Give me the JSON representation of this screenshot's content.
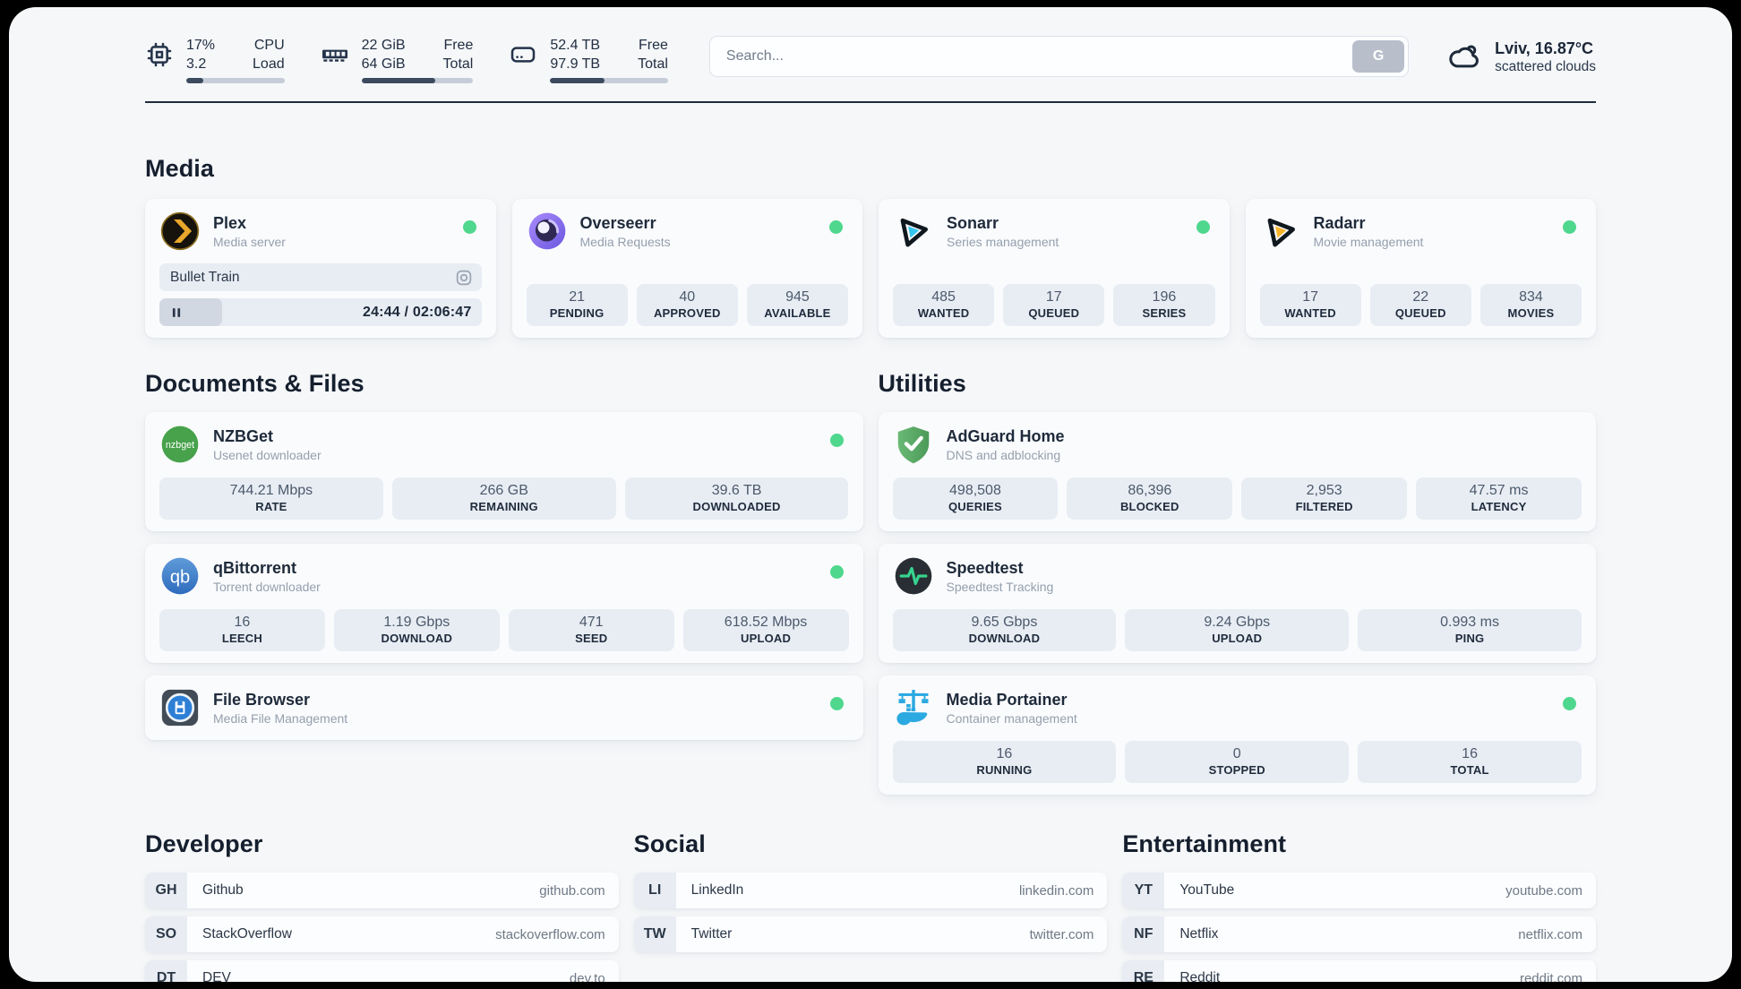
{
  "header": {
    "stats": [
      {
        "name": "cpu",
        "values": [
          "17%",
          "3.2"
        ],
        "labels": [
          "CPU",
          "Load"
        ],
        "progress": 17
      },
      {
        "name": "memory",
        "values": [
          "22 GiB",
          "64 GiB"
        ],
        "labels": [
          "Free",
          "Total"
        ],
        "progress": 66
      },
      {
        "name": "storage",
        "values": [
          "52.4 TB",
          "97.9 TB"
        ],
        "labels": [
          "Free",
          "Total"
        ],
        "progress": 46
      }
    ],
    "search": {
      "placeholder": "Search...",
      "button": "G"
    },
    "weather": {
      "title": "Lviv, 16.87°C",
      "subtitle": "scattered clouds"
    }
  },
  "sections": {
    "media": {
      "title": "Media",
      "cards": [
        {
          "app": "plex",
          "title": "Plex",
          "subtitle": "Media server",
          "online": true,
          "now_playing": "Bullet Train",
          "time_display": "24:44 / 02:06:47",
          "progress": 19.5
        },
        {
          "app": "overseerr",
          "title": "Overseerr",
          "subtitle": "Media Requests",
          "online": true,
          "stats": [
            {
              "value": "21",
              "label": "PENDING"
            },
            {
              "value": "40",
              "label": "APPROVED"
            },
            {
              "value": "945",
              "label": "AVAILABLE"
            }
          ]
        },
        {
          "app": "sonarr",
          "title": "Sonarr",
          "subtitle": "Series management",
          "online": true,
          "stats": [
            {
              "value": "485",
              "label": "WANTED"
            },
            {
              "value": "17",
              "label": "QUEUED"
            },
            {
              "value": "196",
              "label": "SERIES"
            }
          ]
        },
        {
          "app": "radarr",
          "title": "Radarr",
          "subtitle": "Movie management",
          "online": true,
          "stats": [
            {
              "value": "17",
              "label": "WANTED"
            },
            {
              "value": "22",
              "label": "QUEUED"
            },
            {
              "value": "834",
              "label": "MOVIES"
            }
          ]
        }
      ]
    },
    "documents": {
      "title": "Documents & Files",
      "cards": [
        {
          "app": "nzbget",
          "title": "NZBGet",
          "subtitle": "Usenet downloader",
          "online": true,
          "stats": [
            {
              "value": "744.21 Mbps",
              "label": "RATE"
            },
            {
              "value": "266 GB",
              "label": "REMAINING"
            },
            {
              "value": "39.6 TB",
              "label": "DOWNLOADED"
            }
          ]
        },
        {
          "app": "qbittorrent",
          "title": "qBittorrent",
          "subtitle": "Torrent downloader",
          "online": true,
          "stats": [
            {
              "value": "16",
              "label": "LEECH"
            },
            {
              "value": "1.19 Gbps",
              "label": "DOWNLOAD"
            },
            {
              "value": "471",
              "label": "SEED"
            },
            {
              "value": "618.52 Mbps",
              "label": "UPLOAD"
            }
          ]
        },
        {
          "app": "filebrowser",
          "title": "File Browser",
          "subtitle": "Media File Management",
          "online": true,
          "stats": []
        }
      ]
    },
    "utilities": {
      "title": "Utilities",
      "cards": [
        {
          "app": "adguard",
          "title": "AdGuard Home",
          "subtitle": "DNS and adblocking",
          "online": false,
          "stats": [
            {
              "value": "498,508",
              "label": "QUERIES"
            },
            {
              "value": "86,396",
              "label": "BLOCKED"
            },
            {
              "value": "2,953",
              "label": "FILTERED"
            },
            {
              "value": "47.57 ms",
              "label": "LATENCY"
            }
          ]
        },
        {
          "app": "speedtest",
          "title": "Speedtest",
          "subtitle": "Speedtest Tracking",
          "online": false,
          "stats": [
            {
              "value": "9.65 Gbps",
              "label": "DOWNLOAD"
            },
            {
              "value": "9.24 Gbps",
              "label": "UPLOAD"
            },
            {
              "value": "0.993 ms",
              "label": "PING"
            }
          ]
        },
        {
          "app": "portainer",
          "title": "Media Portainer",
          "subtitle": "Container management",
          "online": true,
          "stats": [
            {
              "value": "16",
              "label": "RUNNING"
            },
            {
              "value": "0",
              "label": "STOPPED"
            },
            {
              "value": "16",
              "label": "TOTAL"
            }
          ]
        }
      ]
    },
    "developer": {
      "title": "Developer",
      "links": [
        {
          "abbr": "GH",
          "name": "Github",
          "url": "github.com"
        },
        {
          "abbr": "SO",
          "name": "StackOverflow",
          "url": "stackoverflow.com"
        },
        {
          "abbr": "DT",
          "name": "DEV",
          "url": "dev.to"
        }
      ]
    },
    "social": {
      "title": "Social",
      "links": [
        {
          "abbr": "LI",
          "name": "LinkedIn",
          "url": "linkedin.com"
        },
        {
          "abbr": "TW",
          "name": "Twitter",
          "url": "twitter.com"
        }
      ]
    },
    "entertainment": {
      "title": "Entertainment",
      "links": [
        {
          "abbr": "YT",
          "name": "YouTube",
          "url": "youtube.com"
        },
        {
          "abbr": "NF",
          "name": "Netflix",
          "url": "netflix.com"
        },
        {
          "abbr": "RE",
          "name": "Reddit",
          "url": "reddit.com"
        }
      ]
    }
  },
  "logo_text": {
    "nzbget": "nzbget",
    "qbittorrent": "qb"
  },
  "colors": {
    "status_online": "#4fd78e",
    "progress_fill": "#3c4a5e",
    "stat_box_bg": "#e8edf4",
    "adguard_green": "#57a85f",
    "plex_amber": "#e8a72b",
    "sonarr_cyan": "#35c4ee",
    "radarr_yellow": "#f6b42c",
    "portainer_blue": "#2ba9e1"
  }
}
